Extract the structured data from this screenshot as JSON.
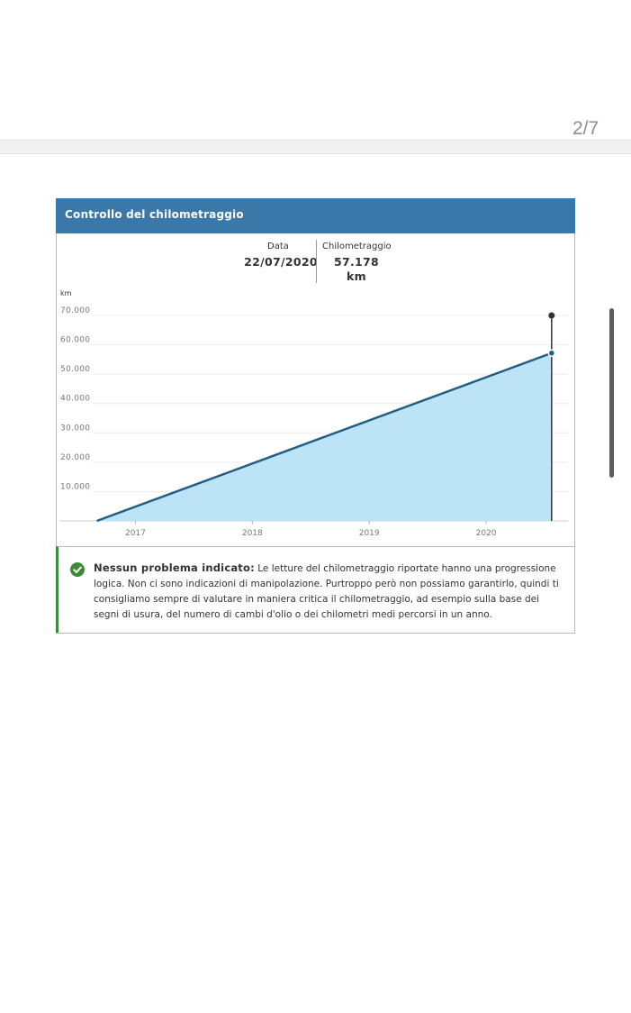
{
  "page_counter": "2/7",
  "card": {
    "title": "Controllo del chilometraggio",
    "tooltip": {
      "date_label": "Data",
      "date_value": "22/07/2020",
      "km_label": "Chilometraggio",
      "km_value_line1": "57.178",
      "km_value_line2": "km"
    },
    "status": {
      "title": "Nessun problema indicato:",
      "message": "Le letture del chilometraggio riportate hanno una progressione logica. Non ci sono indicazioni di manipolazione. Purtroppo però non possiamo garantirlo, quindi ti consigliamo sempre di valutare in maniera critica il chilometraggio, ad esempio sulla base dei segni di usura, del numero di cambi d'olio o dei chilometri medi percorsi in un anno."
    }
  },
  "colors": {
    "header": "#3a78aa",
    "line": "#1f5f86",
    "area": "#bde3f6",
    "status_ok": "#3a8a3a",
    "marker": "#333333"
  },
  "chart_data": {
    "type": "area",
    "ylabel": "km",
    "ylim": [
      0,
      70000
    ],
    "xlim": [
      2016.35,
      2020.7
    ],
    "y_ticks": [
      {
        "value": 10000,
        "label": "10.000"
      },
      {
        "value": 20000,
        "label": "20.000"
      },
      {
        "value": 30000,
        "label": "30.000"
      },
      {
        "value": 40000,
        "label": "40.000"
      },
      {
        "value": 50000,
        "label": "50.000"
      },
      {
        "value": 60000,
        "label": "60.000"
      },
      {
        "value": 70000,
        "label": "70.000"
      }
    ],
    "x_ticks": [
      {
        "value": 2017,
        "label": "2017"
      },
      {
        "value": 2018,
        "label": "2018"
      },
      {
        "value": 2019,
        "label": "2019"
      },
      {
        "value": 2020,
        "label": "2020"
      }
    ],
    "grid": true,
    "series": [
      {
        "points": [
          [
            2016.67,
            0
          ],
          [
            2020.56,
            57178
          ]
        ]
      }
    ],
    "highlight": {
      "x": 2020.56,
      "y": 57178,
      "marker_top_y": 70000
    }
  }
}
